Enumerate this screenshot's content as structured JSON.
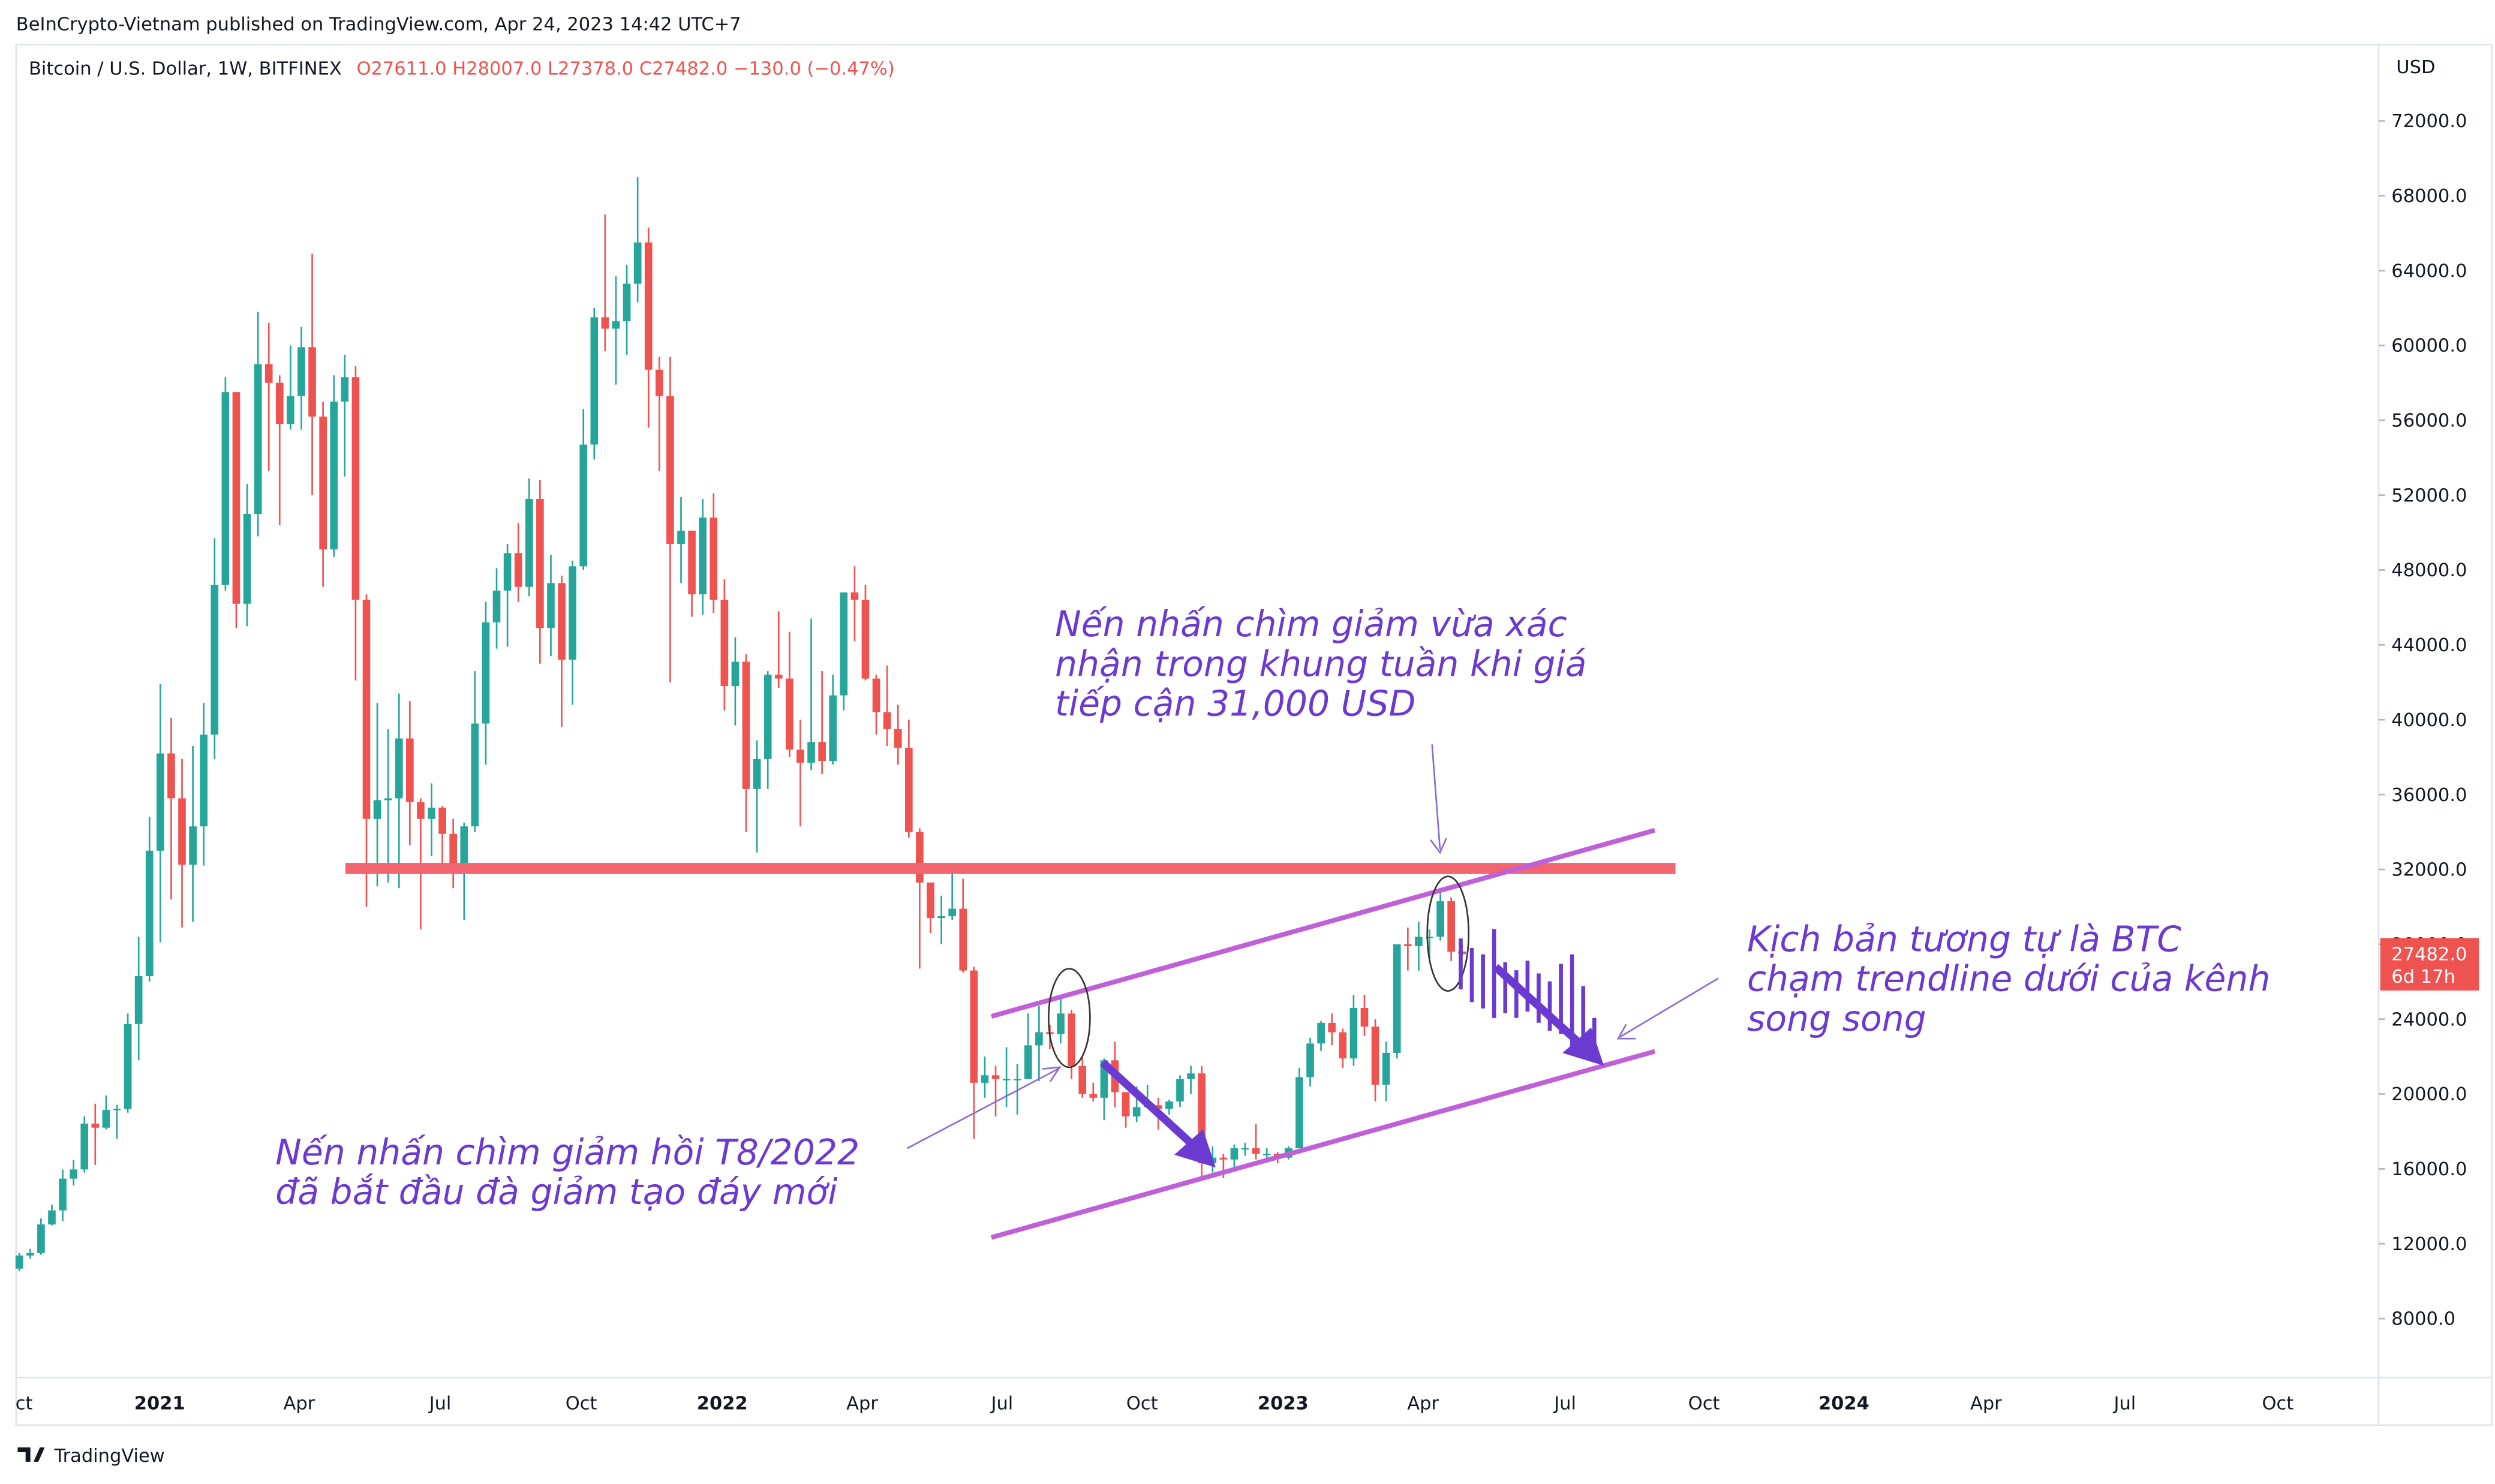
{
  "header": {
    "publisher": "BeInCrypto-Vietnam published on TradingView.com, Apr 24, 2023 14:42 UTC+7",
    "footer": "TradingView"
  },
  "chart_data": {
    "type": "candlestick",
    "title": "Bitcoin / U.S. Dollar, 1W, BITFINEX",
    "ohlc_legend": "O27611.0 H28007.0 L27378.0 C27482.0 −130.0 (−0.47%)",
    "currency": "USD",
    "last_price_label": "27482.0",
    "countdown": "6d 17h",
    "up_color": "#26a69a",
    "down_color": "#ef5350",
    "annotations": [
      [
        "Nến nhấn chìm giảm vừa xác",
        "nhận trong khung tuần khi giá",
        "tiếp cận 31,000 USD"
      ],
      [
        "Nến nhấn chìm giảm hồi T8/2022",
        "đã bắt đầu đà giảm tạo đáy mới"
      ],
      [
        "Kịch bản tương tự là BTC",
        "chạm trendline dưới của kênh",
        "song song"
      ]
    ],
    "xlim": [
      -0.3,
      217.5
    ],
    "xticks": [
      {
        "value": 0.44,
        "label": "ct"
      },
      {
        "value": 12.94,
        "label": "2021"
      },
      {
        "value": 25.8,
        "label": "Apr"
      },
      {
        "value": 38.8,
        "label": "Jul"
      },
      {
        "value": 51.8,
        "label": "Oct"
      },
      {
        "value": 64.8,
        "label": "2022"
      },
      {
        "value": 77.7,
        "label": "Apr"
      },
      {
        "value": 90.6,
        "label": "Jul"
      },
      {
        "value": 103.5,
        "label": "Oct"
      },
      {
        "value": 116.5,
        "label": "2023"
      },
      {
        "value": 129.4,
        "label": "Apr"
      },
      {
        "value": 142.5,
        "label": "Jul"
      },
      {
        "value": 155.3,
        "label": "Oct"
      },
      {
        "value": 168.2,
        "label": "2024"
      },
      {
        "value": 181.3,
        "label": "Apr"
      },
      {
        "value": 194.1,
        "label": "Jul"
      },
      {
        "value": 208.2,
        "label": "Oct"
      }
    ],
    "ylim": [
      4855,
      75908
    ],
    "yticks": [
      {
        "value": 8000,
        "label": "8000.0"
      },
      {
        "value": 12000,
        "label": "12000.0"
      },
      {
        "value": 16000,
        "label": "16000.0"
      },
      {
        "value": 20000,
        "label": "20000.0"
      },
      {
        "value": 24000,
        "label": "24000.0"
      },
      {
        "value": 28000,
        "label": "28000.0"
      },
      {
        "value": 32000,
        "label": "32000.0"
      },
      {
        "value": 36000,
        "label": "36000.0"
      },
      {
        "value": 40000,
        "label": "40000.0"
      },
      {
        "value": 44000,
        "label": "44000.0"
      },
      {
        "value": 48000,
        "label": "48000.0"
      },
      {
        "value": 52000,
        "label": "52000.0"
      },
      {
        "value": 56000,
        "label": "56000.0"
      },
      {
        "value": 60000,
        "label": "60000.0"
      },
      {
        "value": 64000,
        "label": "64000.0"
      },
      {
        "value": 68000,
        "label": "68000.0"
      },
      {
        "value": 72000,
        "label": "72000.0"
      }
    ],
    "open": [
      10670,
      11370,
      11500,
      13030,
      13780,
      15480,
      15970,
      18420,
      18200,
      19150,
      19200,
      23740,
      26300,
      33000,
      38200,
      35800,
      32250,
      34300,
      39200,
      47200,
      57500,
      46200,
      51000,
      59000,
      58000,
      55800,
      57300,
      59900,
      56200,
      49100,
      57000,
      58300,
      46400,
      34700,
      35700,
      35800,
      39000,
      35600,
      34700,
      35300,
      33900,
      31800,
      34300,
      39800,
      45200,
      46900,
      48900,
      47100,
      51800,
      44900,
      47300,
      43200,
      48200,
      54700,
      61500,
      60900,
      61300,
      63300,
      65500,
      58700,
      57300,
      49400,
      50100,
      46700,
      50800,
      46400,
      41800,
      43100,
      36300,
      37900,
      42400,
      42200,
      38400,
      37700,
      38800,
      37800,
      41300,
      46800,
      46400,
      42200,
      40400,
      39500,
      38500,
      34000,
      31300,
      29400,
      29500,
      29900,
      26600,
      20600,
      21000,
      20800,
      20800,
      20800,
      22600,
      23300,
      23200,
      24300,
      21500,
      20000,
      19800,
      21800,
      20100,
      18800,
      19300,
      19400,
      19200,
      19600,
      20800,
      21100,
      16300,
      16600,
      16500,
      17100,
      17100,
      16800,
      16800,
      16600,
      17100,
      20900,
      22700,
      23800,
      23300,
      21900,
      24600,
      23600,
      20500,
      22200,
      28000,
      27900,
      28400,
      28400,
      30300,
      27611
    ],
    "high": [
      11500,
      11730,
      13350,
      14090,
      15960,
      16480,
      18810,
      19480,
      19920,
      19410,
      24300,
      28400,
      34800,
      41900,
      40100,
      37900,
      38600,
      40900,
      49700,
      58300,
      57500,
      52600,
      61800,
      61200,
      58400,
      60000,
      61000,
      64900,
      57000,
      58400,
      59500,
      58900,
      46700,
      40900,
      39500,
      41400,
      41000,
      35800,
      36600,
      35400,
      34700,
      34500,
      42600,
      46300,
      48100,
      49400,
      50500,
      52900,
      52800,
      48800,
      47700,
      48500,
      56600,
      62000,
      67000,
      63700,
      64300,
      69000,
      66300,
      59400,
      59400,
      51900,
      50100,
      51800,
      52100,
      47500,
      44400,
      43500,
      38900,
      42600,
      45800,
      44700,
      40000,
      45400,
      42600,
      42400,
      46800,
      48200,
      47200,
      42400,
      42900,
      40800,
      40000,
      34200,
      31300,
      30600,
      32300,
      31500,
      26800,
      22000,
      21500,
      22500,
      21600,
      24300,
      24700,
      23700,
      25200,
      24500,
      22000,
      20600,
      21900,
      22800,
      20100,
      20400,
      20500,
      19800,
      19700,
      21000,
      21500,
      21500,
      17200,
      16800,
      17300,
      17400,
      18400,
      17100,
      16900,
      17200,
      21400,
      23000,
      23900,
      24300,
      23500,
      25300,
      25300,
      24000,
      22800,
      28000,
      28900,
      29200,
      28800,
      31000,
      30500,
      28007
    ],
    "low": [
      10530,
      11210,
      11410,
      12980,
      13200,
      15110,
      15800,
      16200,
      18110,
      17600,
      19000,
      21800,
      26000,
      28100,
      30400,
      28900,
      29200,
      32200,
      37900,
      46900,
      44900,
      45000,
      49800,
      53300,
      50400,
      55500,
      55500,
      52000,
      47100,
      48700,
      53000,
      42100,
      30000,
      31100,
      31300,
      31000,
      33300,
      28800,
      32700,
      32100,
      31000,
      29300,
      34000,
      37600,
      43800,
      43900,
      46300,
      46600,
      43000,
      43400,
      39600,
      40800,
      48000,
      53900,
      59700,
      57900,
      59500,
      62300,
      55600,
      53300,
      42000,
      47300,
      45500,
      45600,
      45700,
      40500,
      39700,
      34000,
      32900,
      36300,
      41700,
      38000,
      34300,
      37300,
      37100,
      37600,
      40500,
      44200,
      42100,
      39200,
      38600,
      37600,
      33700,
      26700,
      28600,
      28000,
      29300,
      26500,
      17600,
      19800,
      18800,
      19300,
      18900,
      20800,
      20700,
      22400,
      22700,
      20800,
      19800,
      19600,
      18600,
      19300,
      18200,
      18500,
      19200,
      18100,
      18900,
      19300,
      20000,
      15600,
      15800,
      15500,
      16100,
      16700,
      16500,
      16400,
      16300,
      16500,
      17100,
      20400,
      22300,
      22600,
      21400,
      21500,
      23100,
      19600,
      19600,
      21900,
      26600,
      26600,
      27200,
      28200,
      27100,
      27378
    ],
    "close": [
      11370,
      11500,
      13030,
      13780,
      15480,
      15970,
      18420,
      18200,
      19150,
      19200,
      23740,
      26300,
      33000,
      38200,
      35800,
      32250,
      34300,
      39200,
      47200,
      57500,
      46200,
      51000,
      59000,
      58000,
      55800,
      57300,
      59900,
      56200,
      49100,
      57000,
      58300,
      46400,
      34700,
      35700,
      35800,
      39000,
      35600,
      34700,
      35300,
      33900,
      31800,
      34300,
      39800,
      45200,
      46900,
      48900,
      47100,
      51800,
      44900,
      47300,
      43200,
      48200,
      54700,
      61500,
      60900,
      61300,
      63300,
      65500,
      58700,
      57300,
      49400,
      50100,
      46700,
      50800,
      46400,
      41800,
      43100,
      36300,
      37900,
      42400,
      42200,
      38400,
      37700,
      38800,
      37800,
      41300,
      46800,
      46400,
      42200,
      40400,
      39500,
      38500,
      34000,
      31300,
      29400,
      29500,
      29900,
      26600,
      20600,
      21000,
      20800,
      20800,
      20800,
      22600,
      23300,
      23200,
      24300,
      21500,
      20000,
      19800,
      21800,
      20100,
      18800,
      19300,
      19400,
      19200,
      19600,
      20800,
      21100,
      16300,
      16600,
      16500,
      17100,
      17100,
      16800,
      16800,
      16600,
      17100,
      20900,
      22700,
      23800,
      23300,
      21900,
      24600,
      23600,
      20500,
      22200,
      28000,
      27900,
      28400,
      28400,
      30300,
      27600,
      27482
    ]
  }
}
